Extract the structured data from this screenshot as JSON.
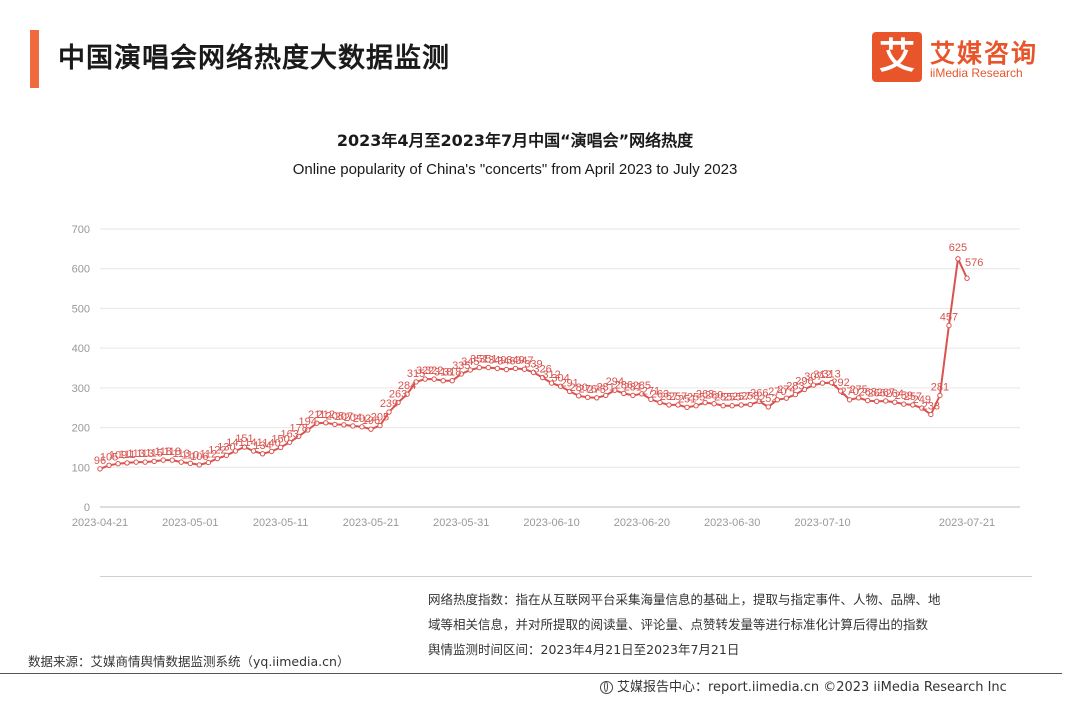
{
  "header": {
    "title": "中国演唱会网络热度大数据监测",
    "logo_mark": "艾",
    "logo_cn": "艾媒咨询",
    "logo_en": "iiMedia Research"
  },
  "chart_data": {
    "type": "line",
    "title": "2023年4月至2023年7月中国“演唱会”网络热度",
    "subtitle": "Online popularity of China's \"concerts\" from April 2023 to July 2023",
    "xlabel": "",
    "ylabel": "",
    "ylim": [
      0,
      700
    ],
    "yticks": [
      0,
      100,
      200,
      300,
      400,
      500,
      600,
      700
    ],
    "x_start": "2023-04-21",
    "x_tick_labels": [
      "2023-04-21",
      "2023-05-01",
      "2023-05-11",
      "2023-05-21",
      "2023-05-31",
      "2023-06-10",
      "2023-06-20",
      "2023-06-30",
      "2023-07-10",
      "2023-07-21"
    ],
    "grid": "horizontal",
    "series": [
      {
        "name": "",
        "color": "#d9534f",
        "values": [
          96,
          105,
          109,
          111,
          113,
          113,
          115,
          118,
          118,
          113,
          110,
          106,
          112,
          122,
          130,
          141,
          151,
          141,
          134,
          140,
          150,
          163,
          178,
          194,
          211,
          212,
          208,
          207,
          204,
          202,
          196,
          205,
          239,
          263,
          284,
          315,
          322,
          322,
          318,
          318,
          335,
          345,
          351,
          351,
          349,
          346,
          349,
          347,
          339,
          326,
          312,
          304,
          291,
          280,
          276,
          275,
          281,
          294,
          286,
          281,
          285,
          271,
          263,
          257,
          257,
          251,
          255,
          263,
          260,
          255,
          255,
          257,
          258,
          266,
          252,
          270,
          274,
          283,
          296,
          307,
          312,
          313,
          292,
          270,
          275,
          268,
          266,
          267,
          264,
          259,
          257,
          249,
          233,
          281,
          457,
          625,
          576
        ]
      }
    ],
    "value_labels": [
      96,
      105,
      109,
      111,
      113,
      113,
      115,
      118,
      118,
      113,
      110,
      106,
      112,
      122,
      130,
      141,
      151,
      141,
      134,
      140,
      150,
      163,
      178,
      194,
      211,
      212,
      208,
      207,
      204,
      202,
      196,
      205,
      239,
      263,
      284,
      315,
      322,
      322,
      318,
      318,
      335,
      345,
      351,
      351,
      349,
      346,
      349,
      347,
      339,
      326,
      312,
      304,
      291,
      280,
      276,
      275,
      281,
      294,
      286,
      281,
      285,
      271,
      263,
      257,
      257,
      251,
      255,
      263,
      260,
      255,
      255,
      257,
      258,
      266,
      252,
      270,
      274,
      283,
      296,
      307,
      312,
      313,
      292,
      270,
      275,
      268,
      266,
      267,
      264,
      259,
      257,
      249,
      233,
      281,
      457,
      625,
      576
    ]
  },
  "notes": {
    "line1": "网络热度指数：指在从互联网平台采集海量信息的基础上，提取与指定事件、人物、品牌、地",
    "line2": "域等相关信息，并对所提取的阅读量、评论量、点赞转发量等进行标准化计算后得出的指数",
    "line3": "舆情监测时间区间：2023年4月21日至2023年7月21日"
  },
  "source": "数据来源：艾媒商情舆情数据监测系统（yq.iimedia.cn）",
  "footer": "艾媒报告中心：report.iimedia.cn   ©2023  iiMedia Research  Inc"
}
